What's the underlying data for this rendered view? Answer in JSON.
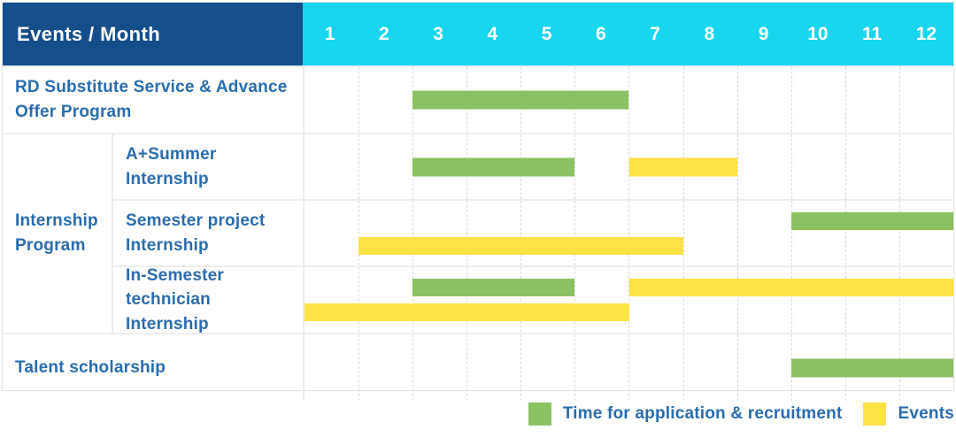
{
  "colors": {
    "header_bg": "#144f8c",
    "months_bg": "#17d6ee",
    "label_text": "#2a6cad",
    "application_green": "#8bc162",
    "events_yellow": "#fde345",
    "grid_line": "#ededed",
    "month_dashed_line": "#d9d9d9"
  },
  "header": {
    "title": "Events / Month"
  },
  "months": [
    "1",
    "2",
    "3",
    "4",
    "5",
    "6",
    "7",
    "8",
    "9",
    "10",
    "11",
    "12"
  ],
  "chart_data": {
    "type": "bar",
    "variant": "gantt-timeline",
    "x_unit": "month",
    "x_range": [
      1,
      12
    ],
    "grid": "dashed-vertical-month-lines",
    "legend_position": "bottom-right",
    "legend": [
      {
        "key": "application",
        "label": "Time for application & recruitment",
        "color": "#8bc162"
      },
      {
        "key": "events",
        "label": "Events",
        "color": "#fde345"
      }
    ],
    "rows": [
      {
        "id": "rd",
        "label": "RD Substitute Service & Advance Offer Program",
        "group": null,
        "bars": [
          {
            "series": "application",
            "start_month": 3,
            "end_month": 6,
            "lane": "single"
          }
        ]
      },
      {
        "id": "summer",
        "label": "A+Summer Internship",
        "group": "Internship Program",
        "bars": [
          {
            "series": "application",
            "start_month": 3,
            "end_month": 5,
            "lane": "single"
          },
          {
            "series": "events",
            "start_month": 7,
            "end_month": 8,
            "lane": "single"
          }
        ]
      },
      {
        "id": "semester_project",
        "label": "Semester project Internship",
        "group": "Internship Program",
        "bars": [
          {
            "series": "application",
            "start_month": 10,
            "end_month": 12,
            "lane": "top"
          },
          {
            "series": "events",
            "start_month": 2,
            "end_month": 7,
            "lane": "bottom"
          }
        ]
      },
      {
        "id": "in_semester",
        "label": "In-Semester technician Internship",
        "group": "Internship Program",
        "bars": [
          {
            "series": "application",
            "start_month": 3,
            "end_month": 5,
            "lane": "top"
          },
          {
            "series": "events",
            "start_month": 7,
            "end_month": 12,
            "lane": "top"
          },
          {
            "series": "events",
            "start_month": 1,
            "end_month": 6,
            "lane": "bottom"
          }
        ]
      },
      {
        "id": "talent",
        "label": "Talent scholarship",
        "group": null,
        "bars": [
          {
            "series": "application",
            "start_month": 10,
            "end_month": 12,
            "lane": "single"
          }
        ]
      }
    ]
  }
}
